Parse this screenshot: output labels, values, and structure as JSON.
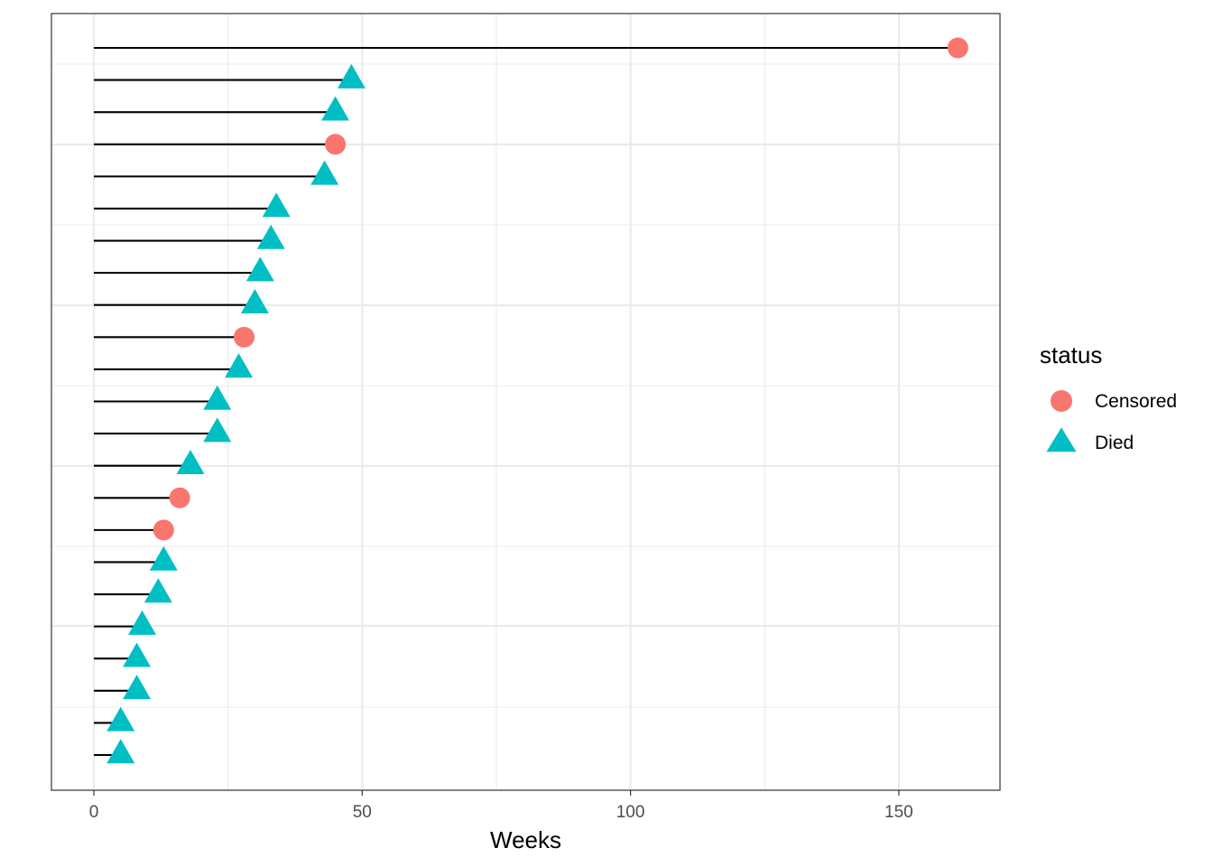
{
  "chart_data": {
    "type": "scatter",
    "subtype": "lollipop",
    "title": "",
    "xlabel": "Weeks",
    "ylabel": "",
    "xlim": [
      -8,
      169.5
    ],
    "xticks": [
      0,
      50,
      100,
      150
    ],
    "x_tick_labels": [
      "0",
      "50",
      "100",
      "150"
    ],
    "grid": true,
    "legend": {
      "title": "status",
      "position": "right",
      "entries": [
        {
          "label": "Censored",
          "shape": "circle",
          "color": "#F8766D"
        },
        {
          "label": "Died",
          "shape": "triangle",
          "color": "#00BFC4"
        }
      ]
    },
    "points_top_to_bottom": [
      {
        "weeks": 161,
        "status": "Censored"
      },
      {
        "weeks": 48,
        "status": "Died"
      },
      {
        "weeks": 45,
        "status": "Died"
      },
      {
        "weeks": 45,
        "status": "Censored"
      },
      {
        "weeks": 43,
        "status": "Died"
      },
      {
        "weeks": 34,
        "status": "Died"
      },
      {
        "weeks": 33,
        "status": "Died"
      },
      {
        "weeks": 31,
        "status": "Died"
      },
      {
        "weeks": 30,
        "status": "Died"
      },
      {
        "weeks": 28,
        "status": "Censored"
      },
      {
        "weeks": 27,
        "status": "Died"
      },
      {
        "weeks": 23,
        "status": "Died"
      },
      {
        "weeks": 23,
        "status": "Died"
      },
      {
        "weeks": 18,
        "status": "Died"
      },
      {
        "weeks": 16,
        "status": "Censored"
      },
      {
        "weeks": 13,
        "status": "Censored"
      },
      {
        "weeks": 13,
        "status": "Died"
      },
      {
        "weeks": 12,
        "status": "Died"
      },
      {
        "weeks": 9,
        "status": "Died"
      },
      {
        "weeks": 8,
        "status": "Died"
      },
      {
        "weeks": 8,
        "status": "Died"
      },
      {
        "weeks": 5,
        "status": "Died"
      },
      {
        "weeks": 5,
        "status": "Died"
      }
    ],
    "colors": {
      "Censored": "#F8766D",
      "Died": "#00BFC4"
    }
  }
}
